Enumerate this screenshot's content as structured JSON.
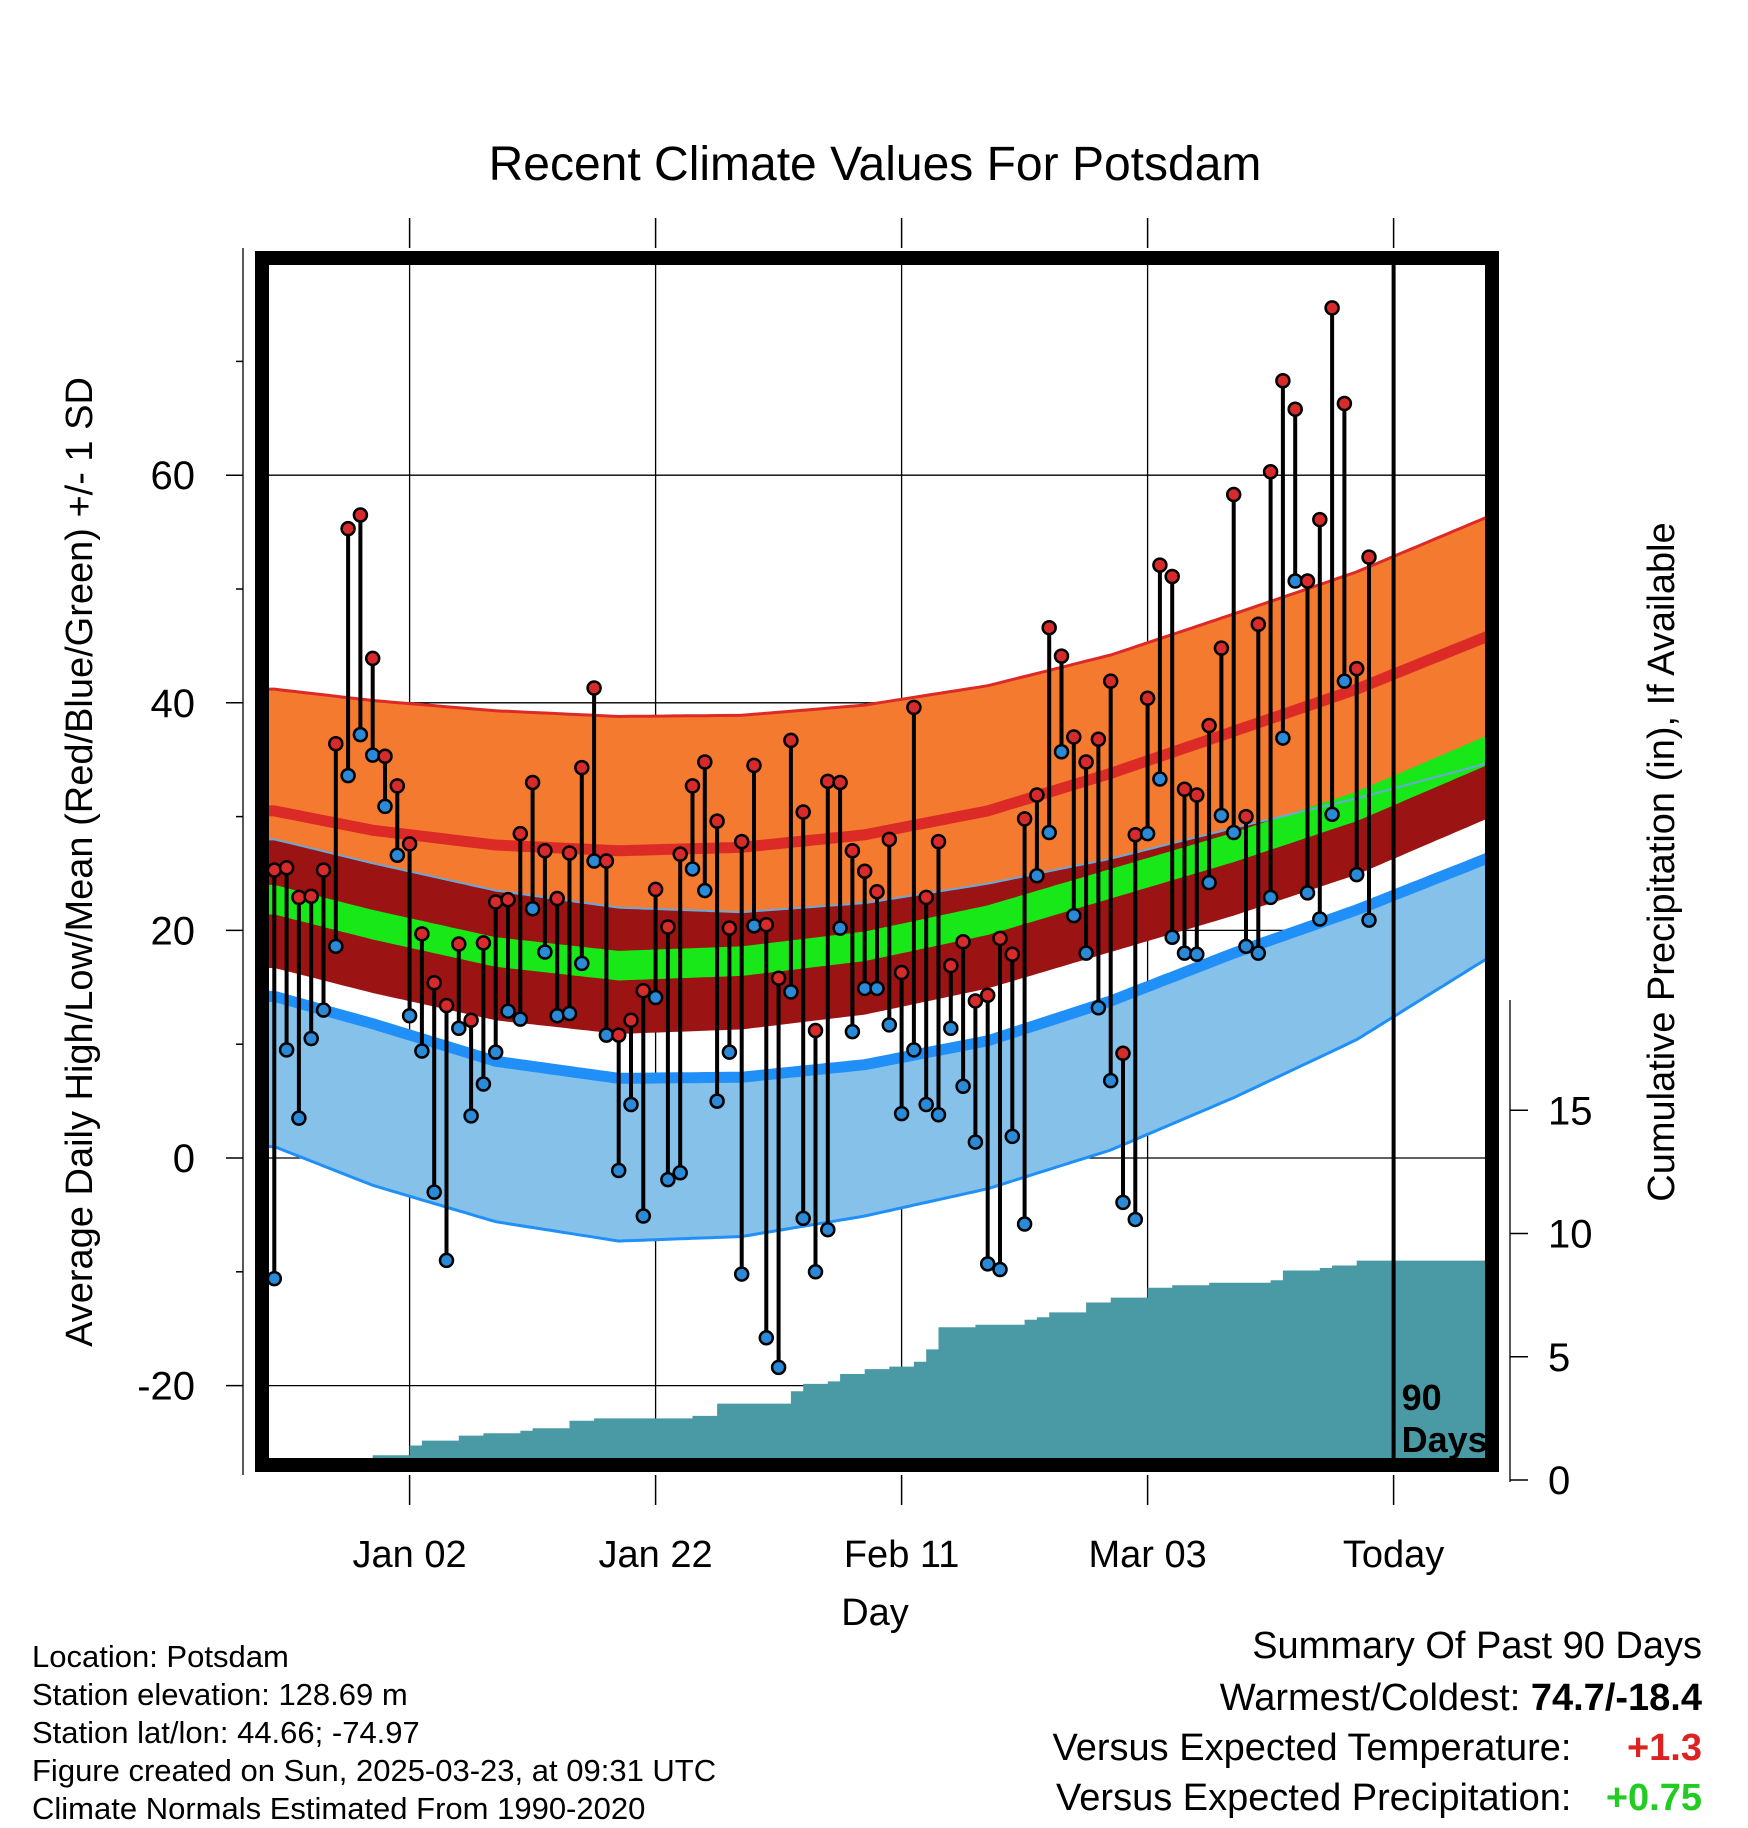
{
  "chart_data": {
    "type": "line",
    "title": "Recent Climate Values For Potsdam",
    "xlabel": "Day",
    "ylabel": "Average Daily High/Low/Mean (Red/Blue/Green) +/- 1 SD",
    "y2label": "Cumulative Precipitation (in), If Available",
    "ylim": [
      -28,
      80
    ],
    "y2lim": [
      0,
      40
    ],
    "yticks": [
      "-20",
      "0",
      "20",
      "40",
      "60"
    ],
    "y2ticks": [
      "0",
      "5",
      "10",
      "15"
    ],
    "xticks": [
      {
        "day": 13,
        "label": "Jan 02"
      },
      {
        "day": 33,
        "label": "Jan 22"
      },
      {
        "day": 53,
        "label": "Feb 11"
      },
      {
        "day": 73,
        "label": "Mar 03"
      },
      {
        "day": 93,
        "label": "Today"
      }
    ],
    "today_label_1": "90",
    "today_label_2": "Days",
    "grid": true,
    "colors": {
      "high_band": "#f47a30",
      "high_mean": "#dc2a27",
      "low_band": "#85c1e9",
      "low_mean": "#2090f8",
      "mean_band": "#18e818",
      "overlap": "#9b1313",
      "precip": "#4a9aa6",
      "high_dot": "#d72b2b",
      "low_dot": "#2b8ad7"
    },
    "normals": {
      "days": [
        2,
        10,
        20,
        30,
        40,
        50,
        60,
        70,
        80,
        90,
        101
      ],
      "high_mean": [
        30.5,
        28.8,
        27.5,
        27.0,
        27.3,
        28.4,
        30.5,
        33.8,
        37.5,
        41.2,
        46.0
      ],
      "high_upper": [
        41.2,
        40.2,
        39.3,
        38.8,
        38.9,
        39.8,
        41.5,
        44.2,
        47.8,
        51.5,
        56.5
      ],
      "high_lower": [
        28.0,
        25.9,
        23.5,
        22.0,
        21.6,
        22.4,
        24.1,
        26.3,
        29.0,
        31.6,
        34.8
      ],
      "mean_mean": [
        22.7,
        20.5,
        18.1,
        16.9,
        17.3,
        18.6,
        20.9,
        24.1,
        27.3,
        30.9,
        36.0
      ],
      "mean_halfwidth": 1.3,
      "low_mean": [
        14.2,
        11.8,
        8.5,
        7.0,
        7.1,
        8.2,
        10.3,
        13.8,
        18.0,
        21.8,
        26.5
      ],
      "low_lower": [
        1.0,
        -2.4,
        -5.6,
        -7.3,
        -6.9,
        -5.1,
        -2.7,
        0.7,
        5.3,
        10.4,
        17.8
      ],
      "high_sd_halfwidth": 0.6,
      "low_sd_halfwidth": 0.6
    },
    "series": [
      {
        "name": "High",
        "values": [
          25.3,
          25.5,
          22.9,
          23.0,
          25.3,
          36.4,
          55.3,
          56.5,
          43.9,
          35.3,
          32.7,
          27.6,
          19.7,
          15.4,
          13.4,
          18.8,
          12.1,
          18.9,
          22.5,
          22.7,
          28.5,
          33.0,
          27.0,
          22.8,
          26.8,
          34.3,
          41.3,
          26.1,
          10.8,
          12.1,
          14.7,
          23.6,
          20.3,
          26.7,
          32.7,
          34.8,
          29.6,
          20.2,
          27.8,
          34.5,
          20.5,
          15.8,
          36.7,
          30.4,
          11.2,
          33.1,
          33.0,
          27.0,
          25.2,
          23.4,
          28.0,
          16.3,
          39.6,
          22.9,
          27.8,
          16.9,
          19.0,
          13.8,
          14.3,
          19.3,
          17.9,
          29.8,
          31.9,
          46.6,
          44.1,
          37.0,
          34.8,
          36.8,
          41.9,
          9.2,
          28.4,
          40.4,
          52.1,
          51.1,
          32.4,
          31.9,
          38.0,
          44.8,
          58.3,
          30.0,
          46.9,
          60.3,
          68.3,
          65.8,
          50.7,
          56.1,
          74.7,
          66.3,
          43.0,
          52.8
        ]
      },
      {
        "name": "Low",
        "values": [
          -10.6,
          9.5,
          3.5,
          10.5,
          13.0,
          18.6,
          33.6,
          37.2,
          35.4,
          30.9,
          26.6,
          12.5,
          9.4,
          -3.0,
          -9.0,
          11.4,
          3.7,
          6.5,
          9.3,
          12.9,
          12.2,
          21.9,
          18.1,
          12.5,
          12.7,
          17.1,
          26.1,
          10.8,
          -1.1,
          4.7,
          -5.1,
          14.1,
          -1.9,
          -1.3,
          25.4,
          23.5,
          5.0,
          9.3,
          -10.2,
          20.4,
          -15.8,
          -18.4,
          14.6,
          -5.3,
          -10.0,
          -6.3,
          20.2,
          11.1,
          14.9,
          14.9,
          11.7,
          3.9,
          9.5,
          4.7,
          3.8,
          11.4,
          6.3,
          1.4,
          -9.3,
          -9.8,
          1.9,
          -5.8,
          24.8,
          28.6,
          35.7,
          21.3,
          18.0,
          13.2,
          6.8,
          -3.9,
          -5.4,
          28.5,
          33.3,
          19.4,
          18.0,
          17.9,
          24.2,
          30.1,
          28.6,
          18.6,
          18.0,
          22.9,
          36.9,
          50.7,
          23.3,
          21.0,
          30.2,
          41.9,
          24.9,
          20.9
        ]
      }
    ],
    "precip": {
      "days": [
        0,
        1,
        5,
        7,
        9,
        10,
        13,
        14,
        17,
        19,
        22,
        23,
        26,
        28,
        36,
        38,
        44,
        45,
        47,
        48,
        50,
        52,
        54,
        55,
        56,
        59,
        63,
        64,
        65,
        68,
        70,
        73,
        75,
        78,
        83,
        84,
        87,
        88,
        90,
        100
      ],
      "values": [
        0.0,
        0.3,
        0.3,
        0.6,
        0.7,
        1.0,
        1.4,
        1.6,
        1.8,
        1.9,
        2.0,
        2.1,
        2.4,
        2.5,
        2.6,
        3.1,
        3.6,
        3.9,
        4.0,
        4.3,
        4.5,
        4.6,
        4.8,
        5.3,
        6.2,
        6.3,
        6.5,
        6.6,
        6.8,
        7.2,
        7.4,
        7.8,
        7.9,
        8.0,
        8.1,
        8.5,
        8.6,
        8.7,
        8.9,
        8.9
      ]
    },
    "today_day": 93,
    "xlim": [
      1,
      101
    ]
  },
  "footer": {
    "location": "Location: Potsdam",
    "elevation": "Station elevation: 128.69 m",
    "latlon": "Station lat/lon: 44.66; -74.97",
    "created": "Figure created on Sun, 2025-03-23, at 09:31 UTC",
    "normals": "Climate Normals Estimated From 1990-2020"
  },
  "summary": {
    "title": "Summary Of Past 90 Days",
    "warm_label": "Warmest/Coldest:",
    "warm_value": "74.7/-18.4",
    "temp_label": "Versus Expected Temperature:",
    "temp_value": "+1.3",
    "temp_color": "#dd2222",
    "precip_label": "Versus Expected Precipitation:",
    "precip_value": "+0.75",
    "precip_color": "#22cc22"
  }
}
